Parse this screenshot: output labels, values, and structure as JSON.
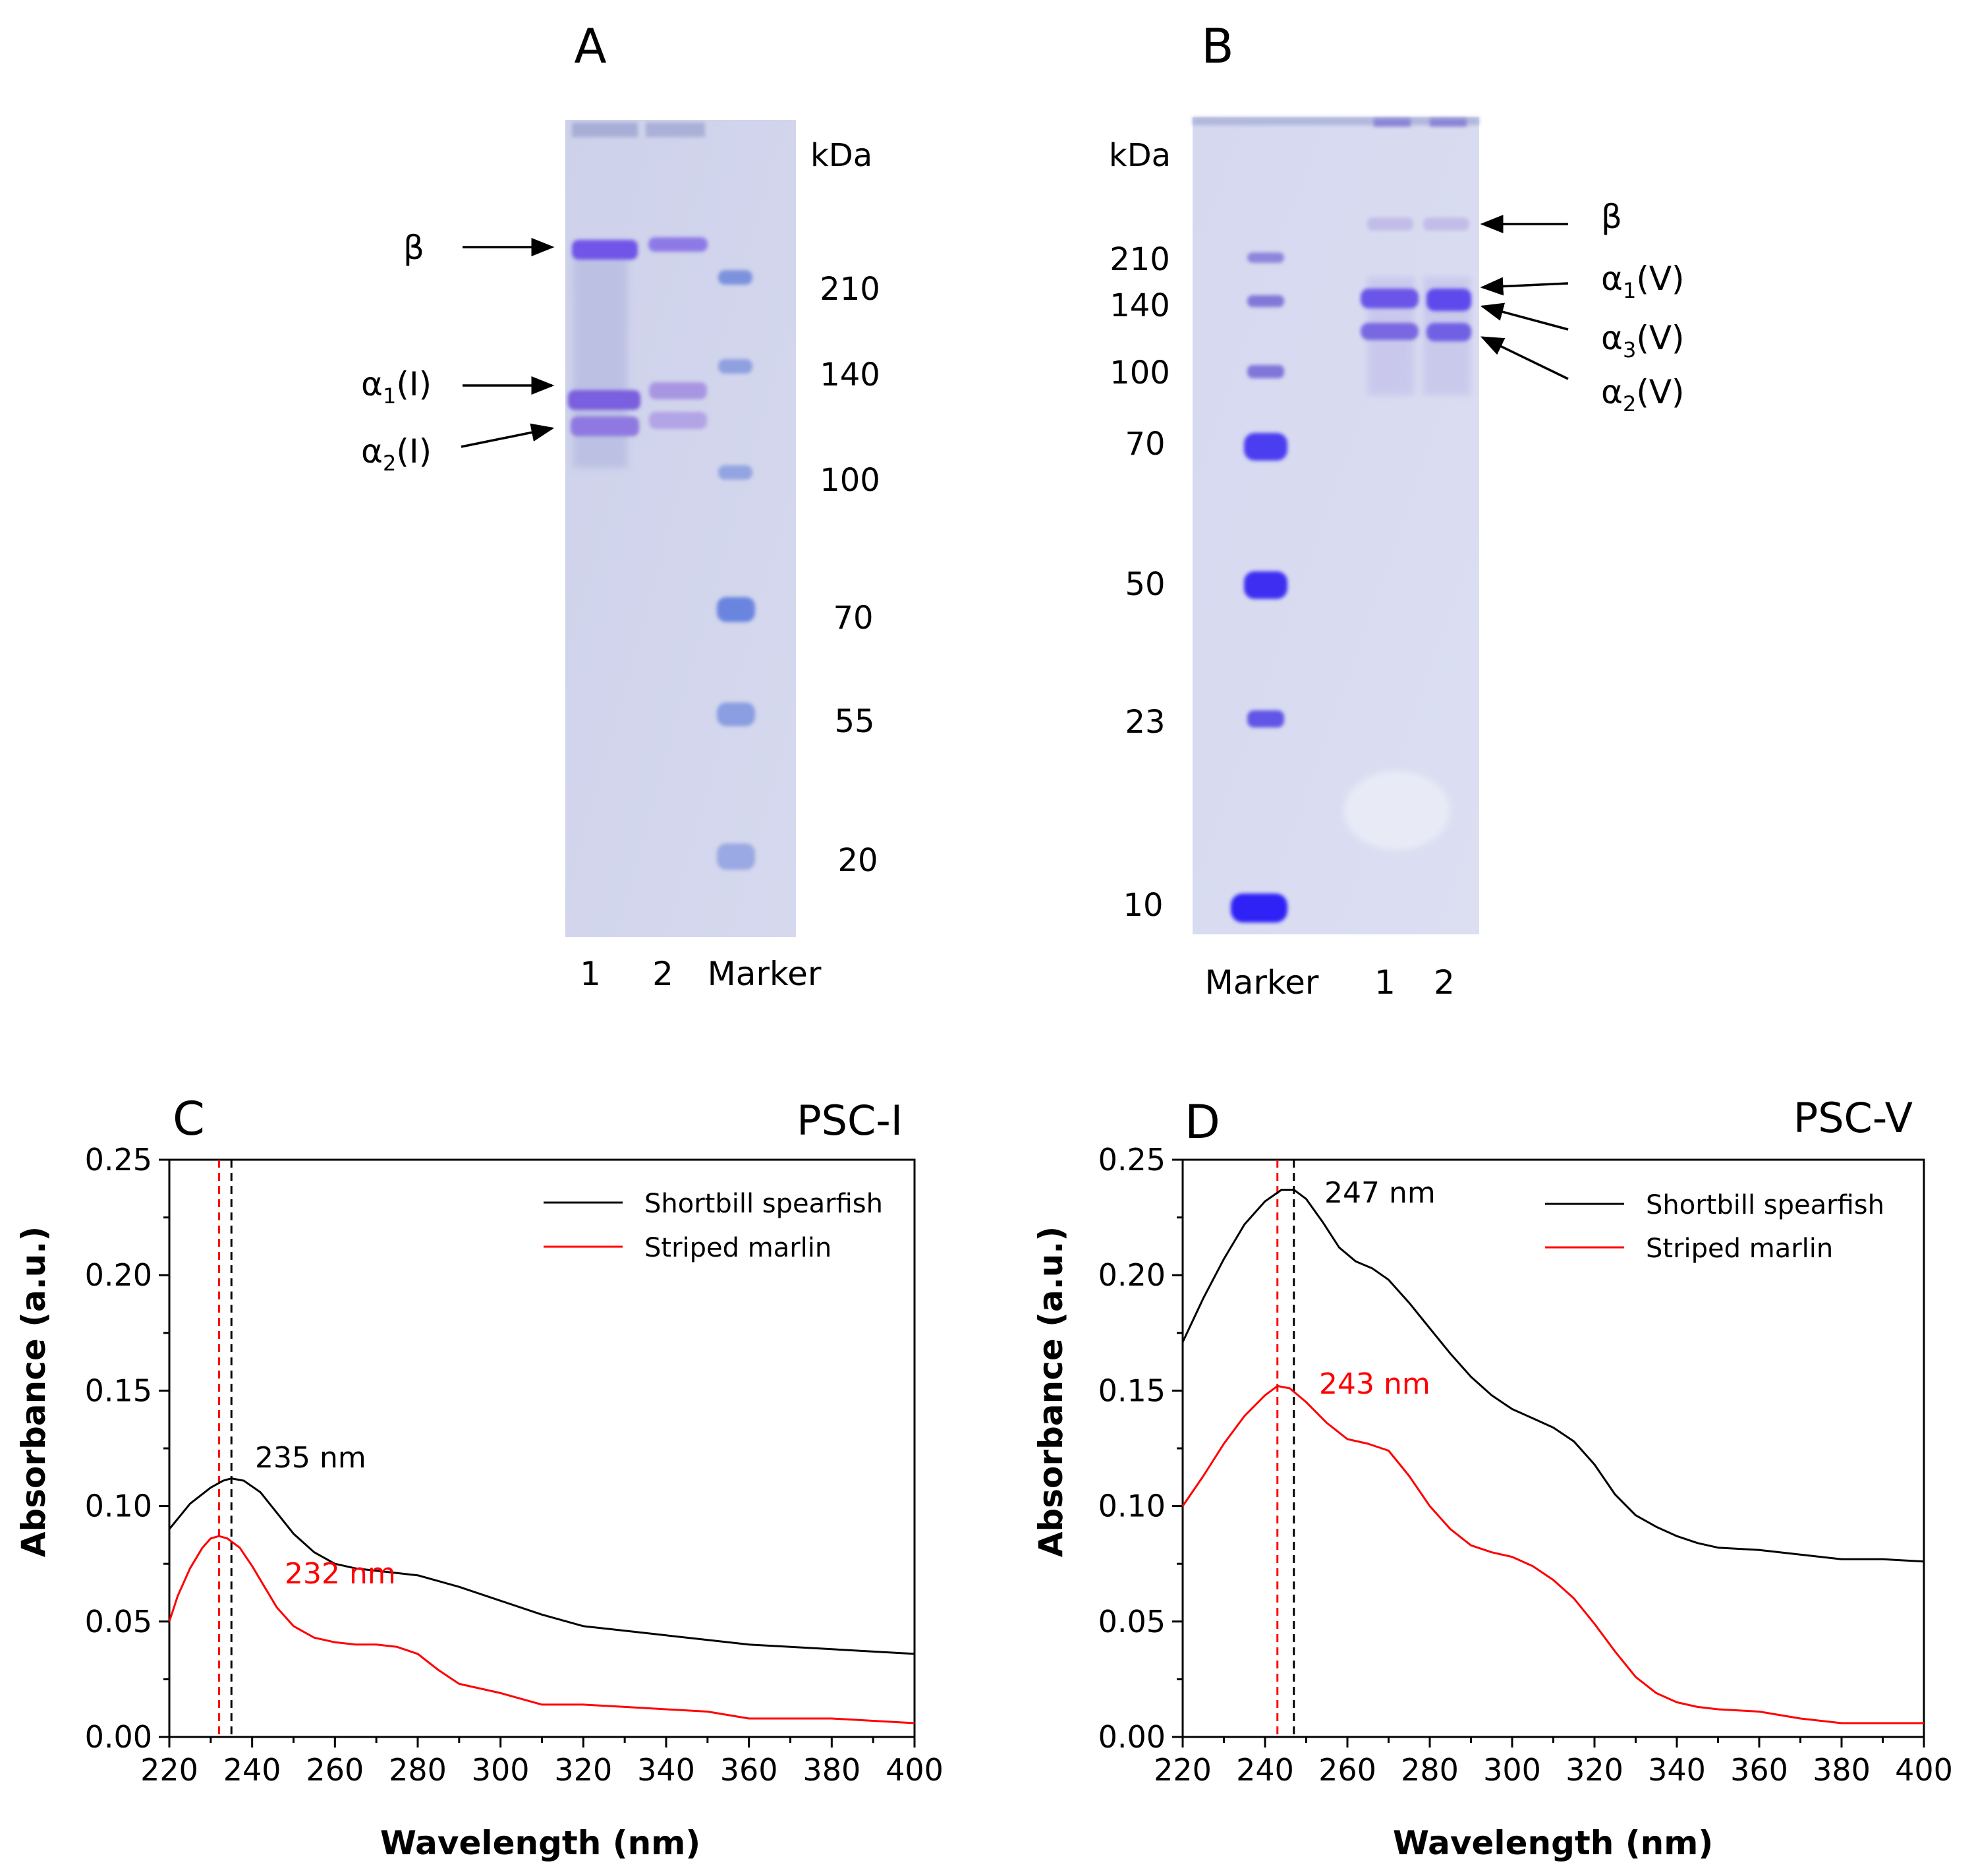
{
  "panels": {
    "A": {
      "letter": "A",
      "unit_label": "kDa",
      "marker_values": [
        "210",
        "140",
        "100",
        "70",
        "55",
        "20"
      ],
      "band_labels": [
        {
          "base": "β",
          "sub": "",
          "suffix": ""
        },
        {
          "base": "α",
          "sub": "1",
          "suffix": "(I)"
        },
        {
          "base": "α",
          "sub": "2",
          "suffix": "(I)"
        }
      ],
      "lane_labels": [
        "1",
        "2",
        "Marker"
      ]
    },
    "B": {
      "letter": "B",
      "unit_label": "kDa",
      "marker_values": [
        "210",
        "140",
        "100",
        "70",
        "50",
        "23",
        "10"
      ],
      "band_labels": [
        {
          "base": "β",
          "sub": "",
          "suffix": ""
        },
        {
          "base": "α",
          "sub": "1",
          "suffix": "(V)"
        },
        {
          "base": "α",
          "sub": "3",
          "suffix": "(V)"
        },
        {
          "base": "α",
          "sub": "2",
          "suffix": "(V)"
        }
      ],
      "lane_labels": [
        "Marker",
        "1",
        "2"
      ]
    }
  },
  "chart_data": [
    {
      "type": "line",
      "panel_letter": "C",
      "title": "PSC-I",
      "xlabel": "Wavelength (nm)",
      "ylabel": "Absorbance (a.u.)",
      "xlim": [
        220,
        400
      ],
      "ylim": [
        0,
        0.25
      ],
      "x_ticks": [
        220,
        240,
        260,
        280,
        300,
        320,
        340,
        360,
        380,
        400
      ],
      "y_ticks": [
        0.0,
        0.05,
        0.1,
        0.15,
        0.2,
        0.25
      ],
      "y_tick_labels": [
        "0.00",
        "0.05",
        "0.10",
        "0.15",
        "0.20",
        "0.25"
      ],
      "legend_position": "top-right",
      "series": [
        {
          "name": "Shortbill spearfish",
          "color": "#000000",
          "x": [
            220,
            225,
            230,
            233,
            235,
            238,
            242,
            246,
            250,
            255,
            260,
            265,
            270,
            275,
            280,
            290,
            300,
            310,
            320,
            330,
            340,
            350,
            360,
            370,
            380,
            390,
            400
          ],
          "y": [
            0.09,
            0.101,
            0.108,
            0.111,
            0.112,
            0.111,
            0.106,
            0.097,
            0.088,
            0.08,
            0.075,
            0.073,
            0.072,
            0.071,
            0.07,
            0.065,
            0.059,
            0.053,
            0.048,
            0.046,
            0.044,
            0.042,
            0.04,
            0.039,
            0.038,
            0.037,
            0.036
          ]
        },
        {
          "name": "Striped marlin",
          "color": "#ff0000",
          "x": [
            220,
            222,
            225,
            228,
            230,
            232,
            234,
            237,
            240,
            243,
            246,
            250,
            255,
            260,
            265,
            270,
            275,
            280,
            285,
            290,
            300,
            310,
            320,
            330,
            340,
            350,
            360,
            370,
            380,
            390,
            400
          ],
          "y": [
            0.05,
            0.061,
            0.073,
            0.082,
            0.086,
            0.087,
            0.086,
            0.082,
            0.074,
            0.065,
            0.056,
            0.048,
            0.043,
            0.041,
            0.04,
            0.04,
            0.039,
            0.036,
            0.029,
            0.023,
            0.019,
            0.014,
            0.014,
            0.013,
            0.012,
            0.011,
            0.008,
            0.008,
            0.008,
            0.007,
            0.006
          ]
        }
      ],
      "peaks": [
        {
          "x": 235,
          "color": "#000000",
          "label": "235 nm"
        },
        {
          "x": 232,
          "color": "#ff0000",
          "label": "232 nm"
        }
      ]
    },
    {
      "type": "line",
      "panel_letter": "D",
      "title": "PSC-V",
      "xlabel": "Wavelength (nm)",
      "ylabel": "Absorbance (a.u.)",
      "xlim": [
        220,
        400
      ],
      "ylim": [
        0,
        0.25
      ],
      "x_ticks": [
        220,
        240,
        260,
        280,
        300,
        320,
        340,
        360,
        380,
        400
      ],
      "y_ticks": [
        0.0,
        0.05,
        0.1,
        0.15,
        0.2,
        0.25
      ],
      "y_tick_labels": [
        "0.00",
        "0.05",
        "0.10",
        "0.15",
        "0.20",
        "0.25"
      ],
      "legend_position": "top-right",
      "series": [
        {
          "name": "Shortbill spearfish",
          "color": "#000000",
          "x": [
            220,
            225,
            230,
            235,
            240,
            244,
            247,
            250,
            254,
            258,
            262,
            266,
            270,
            275,
            280,
            285,
            290,
            295,
            300,
            305,
            310,
            315,
            320,
            325,
            330,
            335,
            340,
            345,
            350,
            360,
            370,
            380,
            390,
            400
          ],
          "y": [
            0.171,
            0.19,
            0.207,
            0.222,
            0.232,
            0.237,
            0.237,
            0.233,
            0.223,
            0.212,
            0.206,
            0.203,
            0.198,
            0.188,
            0.177,
            0.166,
            0.156,
            0.148,
            0.142,
            0.138,
            0.134,
            0.128,
            0.118,
            0.105,
            0.096,
            0.091,
            0.087,
            0.084,
            0.082,
            0.081,
            0.079,
            0.077,
            0.077,
            0.076
          ]
        },
        {
          "name": "Striped marlin",
          "color": "#ff0000",
          "x": [
            220,
            225,
            230,
            235,
            240,
            243,
            246,
            250,
            255,
            260,
            265,
            270,
            275,
            280,
            285,
            290,
            295,
            300,
            305,
            310,
            315,
            320,
            325,
            330,
            335,
            340,
            345,
            350,
            360,
            370,
            380,
            390,
            400
          ],
          "y": [
            0.1,
            0.113,
            0.127,
            0.139,
            0.148,
            0.152,
            0.151,
            0.145,
            0.136,
            0.129,
            0.127,
            0.124,
            0.113,
            0.1,
            0.09,
            0.083,
            0.08,
            0.078,
            0.074,
            0.068,
            0.06,
            0.049,
            0.037,
            0.026,
            0.019,
            0.015,
            0.013,
            0.012,
            0.011,
            0.008,
            0.006,
            0.006,
            0.006
          ]
        }
      ],
      "peaks": [
        {
          "x": 247,
          "color": "#000000",
          "label": "247 nm"
        },
        {
          "x": 243,
          "color": "#ff0000",
          "label": "243 nm"
        }
      ]
    }
  ]
}
